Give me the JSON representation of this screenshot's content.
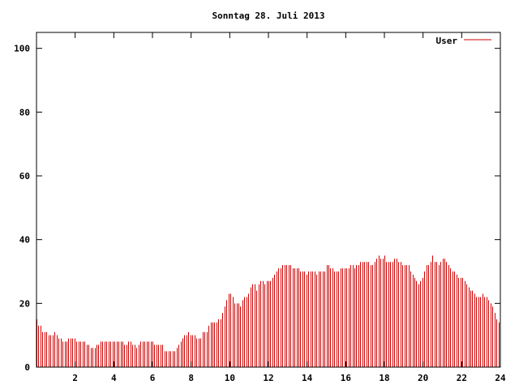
{
  "chart_data": {
    "type": "bar",
    "title": "Sonntag 28. Juli 2013",
    "xlabel": "",
    "ylabel": "",
    "xlim": [
      0,
      24
    ],
    "ylim": [
      0,
      105
    ],
    "x_ticks": [
      2,
      4,
      6,
      8,
      10,
      12,
      14,
      16,
      18,
      20,
      22,
      24
    ],
    "y_ticks": [
      0,
      20,
      40,
      60,
      80,
      100
    ],
    "grid": false,
    "legend": {
      "position": "top-right"
    },
    "series": [
      {
        "name": "User",
        "color": "#cc0000",
        "sample_interval_hours": 0.0833,
        "values": [
          15,
          13,
          13,
          11,
          11,
          11,
          10,
          10,
          10,
          11,
          10,
          9,
          9,
          8,
          8,
          8,
          9,
          9,
          9,
          9,
          8,
          8,
          8,
          8,
          8,
          7,
          7,
          6,
          6,
          6,
          7,
          7,
          8,
          8,
          8,
          8,
          8,
          8,
          8,
          8,
          8,
          8,
          8,
          8,
          7,
          7,
          8,
          8,
          7,
          7,
          6,
          7,
          8,
          8,
          8,
          8,
          8,
          8,
          8,
          7,
          7,
          7,
          7,
          7,
          5,
          5,
          5,
          5,
          5,
          5,
          6,
          7,
          8,
          9,
          10,
          10,
          11,
          10,
          10,
          10,
          9,
          9,
          9,
          11,
          11,
          11,
          13,
          14,
          14,
          14,
          14,
          15,
          15,
          17,
          19,
          21,
          23,
          23,
          22,
          20,
          20,
          20,
          19,
          21,
          22,
          22,
          23,
          25,
          26,
          26,
          24,
          26,
          27,
          27,
          26,
          27,
          27,
          27,
          28,
          29,
          30,
          31,
          31,
          32,
          32,
          32,
          32,
          32,
          31,
          31,
          31,
          31,
          30,
          30,
          30,
          29,
          30,
          30,
          30,
          30,
          29,
          30,
          30,
          30,
          30,
          32,
          32,
          31,
          31,
          30,
          30,
          30,
          31,
          31,
          31,
          31,
          31,
          32,
          32,
          31,
          32,
          32,
          33,
          33,
          33,
          33,
          33,
          32,
          32,
          33,
          34,
          35,
          34,
          34,
          35,
          33,
          33,
          33,
          33,
          34,
          34,
          33,
          33,
          32,
          32,
          32,
          32,
          30,
          29,
          28,
          27,
          26,
          27,
          28,
          30,
          32,
          32,
          33,
          35,
          33,
          33,
          32,
          33,
          34,
          34,
          33,
          32,
          31,
          30,
          30,
          29,
          28,
          28,
          28,
          27,
          26,
          25,
          24,
          24,
          23,
          22,
          22,
          22,
          23,
          22,
          22,
          21,
          20,
          19,
          17,
          15,
          14
        ]
      }
    ]
  }
}
